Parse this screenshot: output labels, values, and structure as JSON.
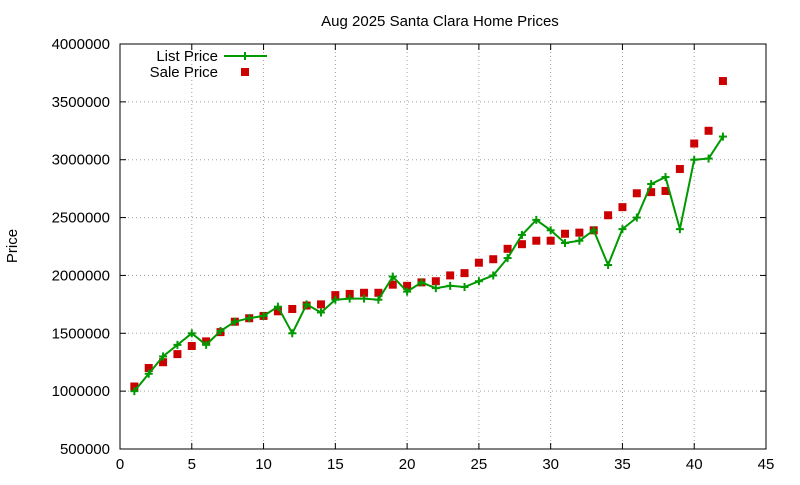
{
  "chart_data": {
    "type": "line",
    "title": "Aug 2025 Santa Clara Home Prices",
    "xlabel": "",
    "ylabel": "Price",
    "xlim": [
      0,
      45
    ],
    "ylim": [
      500000,
      4000000
    ],
    "xticks": [
      0,
      5,
      10,
      15,
      20,
      25,
      30,
      35,
      40,
      45
    ],
    "yticks": [
      500000,
      1000000,
      1500000,
      2000000,
      2500000,
      3000000,
      3500000,
      4000000
    ],
    "grid": true,
    "legend_position": "top-left",
    "x": [
      1,
      2,
      3,
      4,
      5,
      6,
      7,
      8,
      9,
      10,
      11,
      12,
      13,
      14,
      15,
      16,
      17,
      18,
      19,
      20,
      21,
      22,
      23,
      24,
      25,
      26,
      27,
      28,
      29,
      30,
      31,
      32,
      33,
      34,
      35,
      36,
      37,
      38,
      39,
      40,
      41,
      42
    ],
    "series": [
      {
        "name": "List Price",
        "style": "linespoints",
        "color": "#009900",
        "values": [
          1000000,
          1150000,
          1300000,
          1400000,
          1500000,
          1400000,
          1520000,
          1600000,
          1630000,
          1650000,
          1730000,
          1500000,
          1750000,
          1680000,
          1790000,
          1800000,
          1800000,
          1790000,
          1990000,
          1860000,
          1940000,
          1890000,
          1910000,
          1900000,
          1950000,
          2000000,
          2150000,
          2350000,
          2480000,
          2390000,
          2280000,
          2300000,
          2390000,
          2090000,
          2400000,
          2500000,
          2790000,
          2850000,
          2400000,
          3000000,
          3010000,
          3200000
        ]
      },
      {
        "name": "Sale Price",
        "style": "points",
        "color": "#cc0000",
        "values": [
          1040000,
          1200000,
          1250000,
          1320000,
          1390000,
          1430000,
          1510000,
          1600000,
          1630000,
          1650000,
          1690000,
          1710000,
          1740000,
          1750000,
          1830000,
          1840000,
          1850000,
          1850000,
          1920000,
          1910000,
          1940000,
          1950000,
          2000000,
          2020000,
          2110000,
          2140000,
          2230000,
          2270000,
          2300000,
          2300000,
          2360000,
          2370000,
          2390000,
          2520000,
          2590000,
          2710000,
          2720000,
          2730000,
          2920000,
          3140000,
          3250000,
          3680000
        ]
      }
    ]
  }
}
